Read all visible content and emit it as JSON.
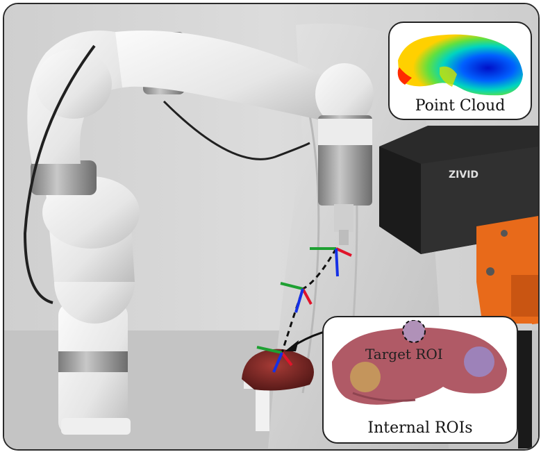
{
  "callouts": {
    "point_cloud_label": "Point Cloud",
    "internal_rois_label": "Internal ROIs",
    "target_roi_label": "Target ROI"
  },
  "camera": {
    "brand": "ZIVID"
  },
  "colors": {
    "axis_x": "#e0142a",
    "axis_y": "#1ea032",
    "axis_z": "#1530e6",
    "trajectory": "#111111",
    "organ": "#8a2a28",
    "mount_orange": "#e86a1a"
  }
}
